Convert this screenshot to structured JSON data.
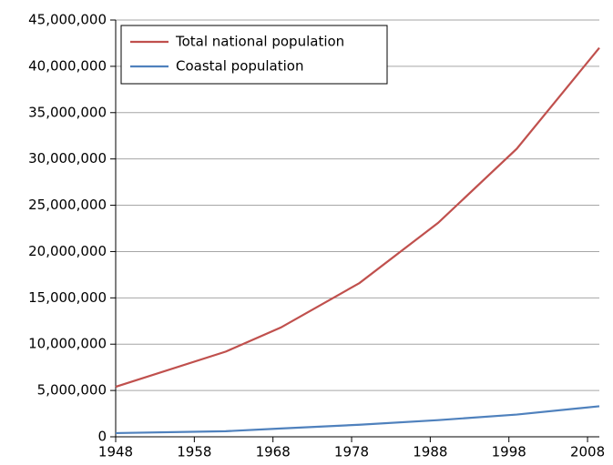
{
  "chart_data": {
    "type": "line",
    "x": [
      1948,
      1962,
      1969,
      1979,
      1989,
      1999,
      2009.5
    ],
    "series": [
      {
        "name": "Total national population",
        "color": "#c0504d",
        "values": [
          5400000,
          9200000,
          11800000,
          16600000,
          23100000,
          31100000,
          42000000
        ]
      },
      {
        "name": "Coastal population",
        "color": "#4f81bd",
        "values": [
          400000,
          600000,
          900000,
          1300000,
          1800000,
          2400000,
          3300000
        ]
      }
    ],
    "xlim": [
      1948,
      2009.5
    ],
    "xticks": [
      1948,
      1958,
      1968,
      1978,
      1988,
      1998,
      2008
    ],
    "ylim": [
      0,
      45000000
    ],
    "yticks": [
      0,
      {
        "value": 5000000,
        "label": "5,000,000"
      },
      {
        "value": 10000000,
        "label": "10,000,000"
      },
      {
        "value": 15000000,
        "label": "15,000,000"
      },
      {
        "value": 20000000,
        "label": "20,000,000"
      },
      {
        "value": 25000000,
        "label": "25,000,000"
      },
      {
        "value": 30000000,
        "label": "30,000,000"
      },
      {
        "value": 35000000,
        "label": "35,000,000"
      },
      {
        "value": 40000000,
        "label": "40,000,000"
      },
      {
        "value": 45000000,
        "label": "45,000,000"
      }
    ],
    "grid": true,
    "legend": "upper left"
  }
}
